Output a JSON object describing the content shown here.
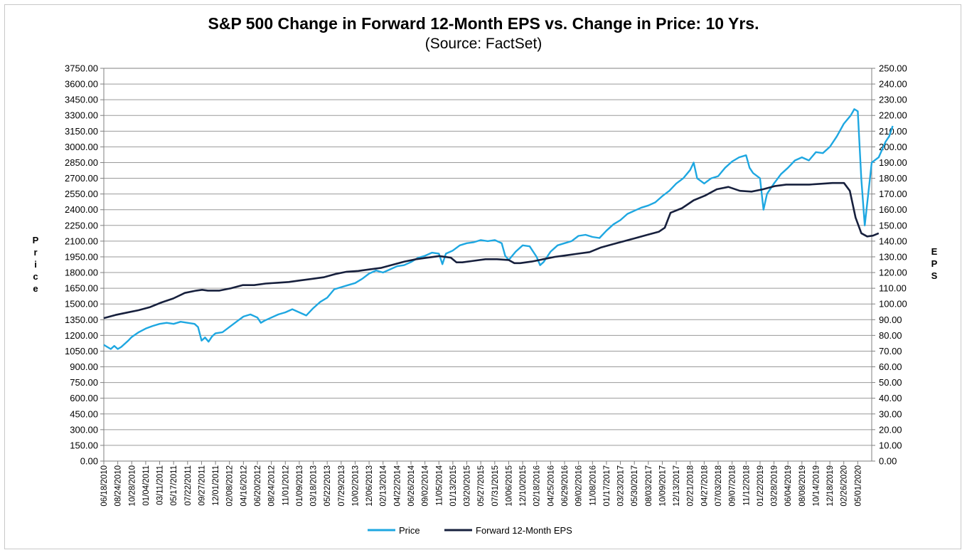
{
  "chart_data": {
    "type": "line",
    "title": "S&P 500 Change in Forward 12-Month EPS vs. Change in Price: 10 Yrs.",
    "subtitle": "(Source: FactSet)",
    "ylabel_left": "Price",
    "ylabel_right": "EPS",
    "ylim_left": [
      0,
      3750
    ],
    "ylim_right": [
      0,
      250
    ],
    "yticks_left": [
      "0.00",
      "150.00",
      "300.00",
      "450.00",
      "600.00",
      "750.00",
      "900.00",
      "1050.00",
      "1200.00",
      "1350.00",
      "1500.00",
      "1650.00",
      "1800.00",
      "1950.00",
      "2100.00",
      "2250.00",
      "2400.00",
      "2550.00",
      "2700.00",
      "2850.00",
      "3000.00",
      "3150.00",
      "3300.00",
      "3450.00",
      "3600.00",
      "3750.00"
    ],
    "yticks_right": [
      "0.00",
      "10.00",
      "20.00",
      "30.00",
      "40.00",
      "50.00",
      "60.00",
      "70.00",
      "80.00",
      "90.00",
      "100.00",
      "110.00",
      "120.00",
      "130.00",
      "140.00",
      "150.00",
      "160.00",
      "170.00",
      "180.00",
      "190.00",
      "200.00",
      "210.00",
      "220.00",
      "230.00",
      "240.00",
      "250.00"
    ],
    "x_labels": [
      "06/18/2010",
      "08/24/2010",
      "10/28/2010",
      "01/04/2011",
      "03/11/2011",
      "05/17/2011",
      "07/22/2011",
      "09/27/2011",
      "12/01/2011",
      "02/08/2012",
      "04/16/2012",
      "06/20/2012",
      "08/24/2012",
      "11/01/2012",
      "01/09/2013",
      "03/18/2013",
      "05/22/2013",
      "07/29/2013",
      "10/02/2013",
      "12/06/2013",
      "02/13/2014",
      "04/22/2014",
      "06/26/2014",
      "09/02/2014",
      "11/05/2014",
      "01/13/2015",
      "03/20/2015",
      "05/27/2015",
      "07/31/2015",
      "10/06/2015",
      "12/10/2015",
      "02/18/2016",
      "04/25/2016",
      "06/29/2016",
      "09/02/2016",
      "11/08/2016",
      "01/17/2017",
      "03/23/2017",
      "05/30/2017",
      "08/03/2017",
      "10/09/2017",
      "12/13/2017",
      "02/21/2018",
      "04/27/2018",
      "07/03/2018",
      "09/07/2018",
      "11/12/2018",
      "01/22/2019",
      "03/28/2019",
      "06/04/2019",
      "08/08/2019",
      "10/14/2019",
      "12/18/2019",
      "02/26/2020",
      "05/01/2020"
    ],
    "grid": true,
    "legend_position": "bottom",
    "series": [
      {
        "name": "Price",
        "axis": "left",
        "color": "#1ea7e1",
        "values": [
          [
            0,
            1110
          ],
          [
            0.25,
            1090
          ],
          [
            0.5,
            1070
          ],
          [
            0.75,
            1100
          ],
          [
            1,
            1070
          ],
          [
            1.25,
            1090
          ],
          [
            1.5,
            1120
          ],
          [
            1.75,
            1150
          ],
          [
            2,
            1185
          ],
          [
            2.5,
            1230
          ],
          [
            3,
            1265
          ],
          [
            3.5,
            1290
          ],
          [
            4,
            1310
          ],
          [
            4.5,
            1320
          ],
          [
            5,
            1310
          ],
          [
            5.5,
            1330
          ],
          [
            6,
            1320
          ],
          [
            6.5,
            1310
          ],
          [
            6.75,
            1280
          ],
          [
            7,
            1150
          ],
          [
            7.25,
            1180
          ],
          [
            7.5,
            1140
          ],
          [
            7.75,
            1190
          ],
          [
            8,
            1220
          ],
          [
            8.5,
            1230
          ],
          [
            9,
            1280
          ],
          [
            9.5,
            1330
          ],
          [
            10,
            1380
          ],
          [
            10.5,
            1400
          ],
          [
            11,
            1370
          ],
          [
            11.25,
            1320
          ],
          [
            11.5,
            1340
          ],
          [
            12,
            1370
          ],
          [
            12.5,
            1400
          ],
          [
            13,
            1420
          ],
          [
            13.5,
            1450
          ],
          [
            14,
            1420
          ],
          [
            14.5,
            1390
          ],
          [
            15,
            1460
          ],
          [
            15.5,
            1520
          ],
          [
            16,
            1560
          ],
          [
            16.5,
            1640
          ],
          [
            17,
            1660
          ],
          [
            17.5,
            1680
          ],
          [
            18,
            1700
          ],
          [
            18.5,
            1740
          ],
          [
            19,
            1790
          ],
          [
            19.5,
            1820
          ],
          [
            20,
            1800
          ],
          [
            20.5,
            1830
          ],
          [
            21,
            1860
          ],
          [
            21.5,
            1870
          ],
          [
            22,
            1900
          ],
          [
            22.5,
            1940
          ],
          [
            23,
            1960
          ],
          [
            23.5,
            1990
          ],
          [
            24,
            1980
          ],
          [
            24.25,
            1880
          ],
          [
            24.5,
            1980
          ],
          [
            25,
            2010
          ],
          [
            25.5,
            2060
          ],
          [
            26,
            2080
          ],
          [
            26.5,
            2090
          ],
          [
            27,
            2110
          ],
          [
            27.5,
            2100
          ],
          [
            28,
            2110
          ],
          [
            28.5,
            2080
          ],
          [
            28.75,
            1960
          ],
          [
            29,
            1920
          ],
          [
            29.5,
            2000
          ],
          [
            30,
            2060
          ],
          [
            30.5,
            2050
          ],
          [
            31,
            1950
          ],
          [
            31.25,
            1870
          ],
          [
            31.5,
            1900
          ],
          [
            32,
            2000
          ],
          [
            32.5,
            2060
          ],
          [
            33,
            2080
          ],
          [
            33.5,
            2100
          ],
          [
            34,
            2150
          ],
          [
            34.5,
            2160
          ],
          [
            35,
            2140
          ],
          [
            35.5,
            2130
          ],
          [
            36,
            2200
          ],
          [
            36.5,
            2260
          ],
          [
            37,
            2300
          ],
          [
            37.5,
            2360
          ],
          [
            38,
            2390
          ],
          [
            38.5,
            2420
          ],
          [
            39,
            2440
          ],
          [
            39.5,
            2470
          ],
          [
            40,
            2530
          ],
          [
            40.5,
            2580
          ],
          [
            41,
            2650
          ],
          [
            41.5,
            2700
          ],
          [
            42,
            2780
          ],
          [
            42.25,
            2850
          ],
          [
            42.5,
            2700
          ],
          [
            43,
            2650
          ],
          [
            43.5,
            2700
          ],
          [
            44,
            2720
          ],
          [
            44.5,
            2800
          ],
          [
            45,
            2860
          ],
          [
            45.5,
            2900
          ],
          [
            46,
            2920
          ],
          [
            46.25,
            2800
          ],
          [
            46.5,
            2750
          ],
          [
            47,
            2700
          ],
          [
            47.25,
            2400
          ],
          [
            47.5,
            2550
          ],
          [
            48,
            2650
          ],
          [
            48.5,
            2740
          ],
          [
            49,
            2800
          ],
          [
            49.5,
            2870
          ],
          [
            50,
            2900
          ],
          [
            50.5,
            2870
          ],
          [
            51,
            2950
          ],
          [
            51.5,
            2940
          ],
          [
            52,
            3000
          ],
          [
            52.5,
            3100
          ],
          [
            53,
            3220
          ],
          [
            53.5,
            3300
          ],
          [
            53.75,
            3360
          ],
          [
            54,
            3340
          ],
          [
            54.25,
            2700
          ],
          [
            54.5,
            2250
          ],
          [
            54.75,
            2550
          ],
          [
            55,
            2850
          ],
          [
            55.5,
            2900
          ],
          [
            56,
            3050
          ],
          [
            56.25,
            3100
          ],
          [
            56.5,
            3200
          ]
        ]
      },
      {
        "name": "Forward 12-Month EPS",
        "axis": "right",
        "color": "#17203d",
        "values": [
          [
            0,
            91
          ],
          [
            1,
            93
          ],
          [
            2,
            94.5
          ],
          [
            3,
            96
          ],
          [
            4,
            98
          ],
          [
            5,
            101
          ],
          [
            6,
            103.5
          ],
          [
            7,
            107
          ],
          [
            8,
            108.5
          ],
          [
            8.5,
            109
          ],
          [
            9,
            108.5
          ],
          [
            10,
            108.5
          ],
          [
            11,
            110
          ],
          [
            12,
            112
          ],
          [
            13,
            112
          ],
          [
            14,
            113
          ],
          [
            15,
            113.5
          ],
          [
            16,
            114
          ],
          [
            17,
            115
          ],
          [
            18,
            116
          ],
          [
            19,
            117
          ],
          [
            20,
            119
          ],
          [
            21,
            120.5
          ],
          [
            22,
            121
          ],
          [
            23,
            122
          ],
          [
            24,
            123
          ],
          [
            25,
            125
          ],
          [
            26,
            127
          ],
          [
            27,
            128.5
          ],
          [
            28,
            129.5
          ],
          [
            29,
            130.5
          ],
          [
            30,
            129.5
          ],
          [
            30.5,
            126.5
          ],
          [
            31,
            126.5
          ],
          [
            32,
            127.5
          ],
          [
            33,
            128.5
          ],
          [
            34,
            128.5
          ],
          [
            35,
            128
          ],
          [
            35.5,
            126
          ],
          [
            36,
            126
          ],
          [
            37,
            127
          ],
          [
            38,
            128.5
          ],
          [
            39,
            130
          ],
          [
            40,
            131
          ],
          [
            41,
            132
          ],
          [
            42,
            133
          ],
          [
            43,
            136
          ],
          [
            44,
            138
          ],
          [
            45,
            140
          ],
          [
            46,
            142
          ],
          [
            47,
            144
          ],
          [
            48,
            146
          ],
          [
            48.5,
            148.5
          ],
          [
            49,
            158
          ],
          [
            50,
            161
          ],
          [
            51,
            166
          ],
          [
            52,
            169
          ],
          [
            53,
            173
          ],
          [
            54,
            174.5
          ],
          [
            55,
            172
          ],
          [
            56,
            171.5
          ],
          [
            57,
            173
          ],
          [
            58,
            175
          ],
          [
            59,
            176
          ],
          [
            60,
            176
          ],
          [
            61,
            176
          ],
          [
            62,
            176.5
          ],
          [
            63,
            177
          ],
          [
            64,
            177
          ],
          [
            64.5,
            172
          ],
          [
            65,
            155
          ],
          [
            65.5,
            145
          ],
          [
            66,
            143
          ],
          [
            66.5,
            143.5
          ],
          [
            67,
            145
          ]
        ]
      }
    ]
  }
}
